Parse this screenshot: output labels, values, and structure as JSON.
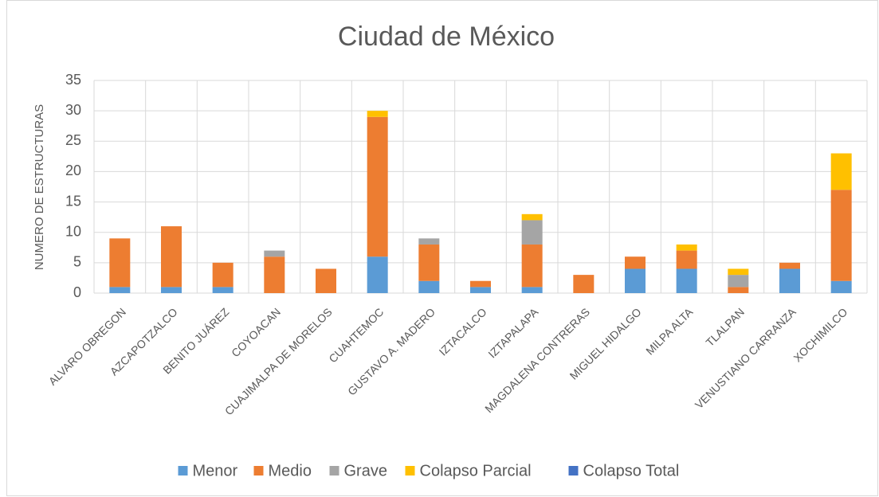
{
  "chart_data": {
    "type": "stacked_bar",
    "title": "Ciudad de México",
    "y_label": "NUMERO DE ESTRUCTURAS",
    "categories": [
      "ALVARO OBREGON",
      "AZCAPOTZALCO",
      "BENITO JUÁREZ",
      "COYOACAN",
      "CUAJIMALPA DE MORELOS",
      "CUAHTEMOC",
      "GUSTAVO A. MADERO",
      "IZTACALCO",
      "IZTAPALAPA",
      "MAGDALENA CONTRERAS",
      "MIGUEL HIDALGO",
      "MILPA ALTA",
      "TLALPAN",
      "VENUSTIANO CARRANZA",
      "XOCHIMILCO"
    ],
    "series": [
      {
        "name": "Menor",
        "color": "#5b9bd5",
        "values": [
          1,
          1,
          1,
          0,
          0,
          6,
          2,
          1,
          1,
          0,
          4,
          4,
          0,
          4,
          2
        ]
      },
      {
        "name": "Medio",
        "color": "#ed7d31",
        "values": [
          8,
          10,
          4,
          6,
          4,
          23,
          6,
          1,
          7,
          3,
          2,
          3,
          1,
          1,
          15
        ]
      },
      {
        "name": "Grave",
        "color": "#a5a5a5",
        "values": [
          0,
          0,
          0,
          1,
          0,
          0,
          1,
          0,
          4,
          0,
          0,
          0,
          2,
          0,
          0
        ]
      },
      {
        "name": "Colapso Parcial",
        "color": "#ffc000",
        "values": [
          0,
          0,
          0,
          0,
          0,
          1,
          0,
          0,
          1,
          0,
          0,
          1,
          1,
          0,
          6
        ]
      },
      {
        "name": "Colapso Total",
        "color": "#4472c4",
        "values": [
          0,
          0,
          0,
          0,
          0,
          0,
          0,
          0,
          0,
          0,
          0,
          0,
          0,
          0,
          0
        ]
      }
    ],
    "ylim": [
      0,
      35
    ],
    "yticks": [
      0,
      5,
      10,
      15,
      20,
      25,
      30,
      35
    ],
    "grid": true,
    "legend": "bottom"
  }
}
